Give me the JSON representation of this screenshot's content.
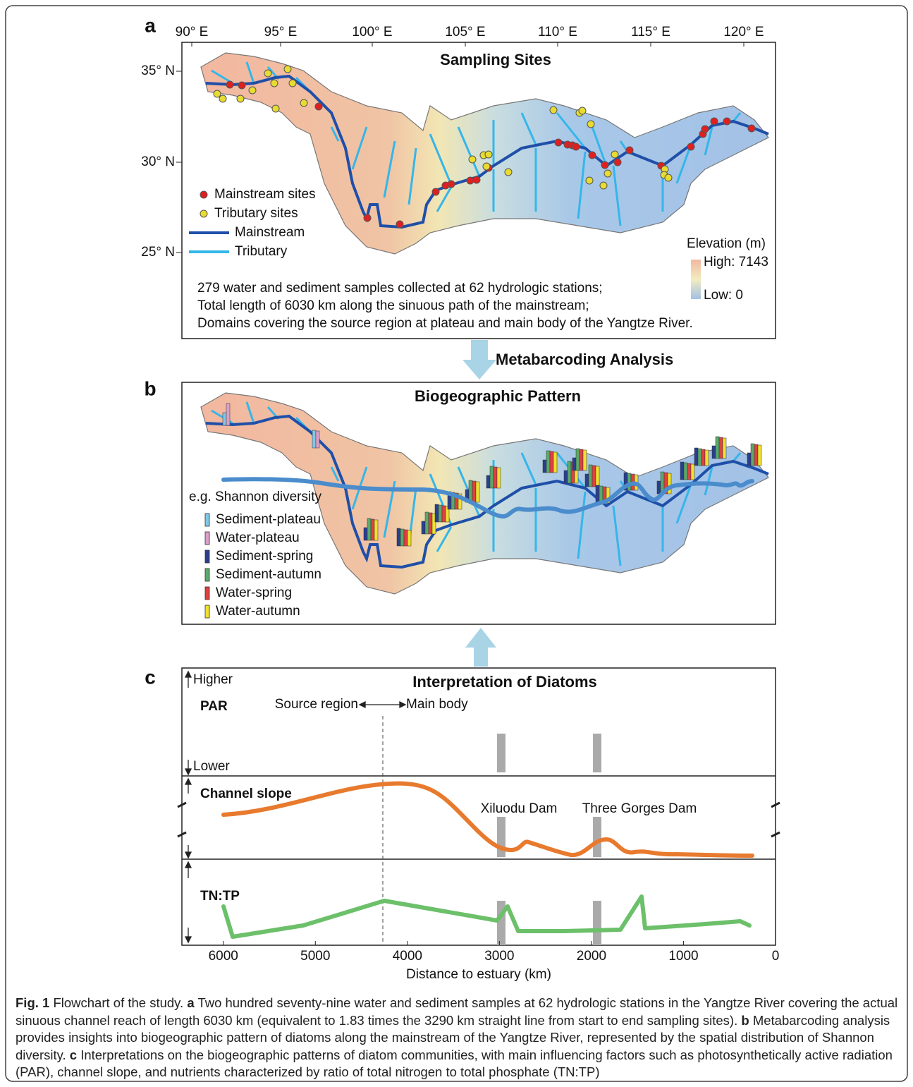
{
  "panel_a": {
    "label": "a",
    "title": "Sampling Sites",
    "lon_ticks": [
      "90° E",
      "95° E",
      "100° E",
      "105° E",
      "110° E",
      "115° E",
      "120° E"
    ],
    "lat_ticks": [
      "35° N",
      "30° N",
      "25° N"
    ],
    "legend": [
      {
        "name": "Mainstream sites",
        "color": "#e02020"
      },
      {
        "name": "Tributary sites",
        "color": "#e8dc30"
      },
      {
        "name": "Mainstream",
        "color": "#1f4fa8"
      },
      {
        "name": "Tributary",
        "color": "#35b6ea"
      }
    ],
    "elevation": {
      "title": "Elevation (m)",
      "high": "High: 7143",
      "low": "Low: 0"
    },
    "notes": [
      "279 water and sediment samples collected at 62 hydrologic stations;",
      "Total length of 6030 km along the sinuous path of the mainstream;",
      "Domains covering the source region at plateau and main body of the Yangtze River."
    ]
  },
  "arrow_label": "Metabarcoding Analysis",
  "panel_b": {
    "label": "b",
    "title": "Biogeographic Pattern",
    "legend_title": "e.g. Shannon diversity",
    "legend": [
      {
        "name": "Sediment-plateau",
        "color": "#7fc8e8"
      },
      {
        "name": "Water-plateau",
        "color": "#d9a0c8"
      },
      {
        "name": "Sediment-spring",
        "color": "#2a3f8f"
      },
      {
        "name": "Sediment-autumn",
        "color": "#5aaa6a"
      },
      {
        "name": "Water-spring",
        "color": "#e04040"
      },
      {
        "name": "Water-autumn",
        "color": "#f0e030"
      }
    ]
  },
  "panel_c": {
    "label": "c",
    "title": "Interpretation of Diatoms",
    "higher": "Higher",
    "lower": "Lower",
    "source_region": "Source region",
    "main_body": "Main body",
    "factors": [
      "PAR",
      "Channel slope",
      "TN:TP"
    ],
    "dams": [
      "Xiluodu Dam",
      "Three Gorges Dam"
    ],
    "xlim": [
      6450,
      0
    ],
    "xticks": [
      6000,
      5000,
      4000,
      3000,
      2000,
      1000,
      0
    ],
    "xlabel": "Distance to estuary (km)"
  },
  "caption": {
    "figure": "Fig. 1",
    "intro": "Flowchart of the study.",
    "a": "a",
    "a_text": "Two hundred seventy-nine water and sediment samples at 62 hydrologic stations in the Yangtze River covering the actual sinuous channel reach of length 6030 km (equivalent to 1.83 times the 3290 km straight line from start to end sampling sites).",
    "b": "b",
    "b_text": "Metabarcoding analysis provides insights into biogeographic pattern of diatoms along the mainstream of the Yangtze River, represented by the spatial distribution of Shannon diversity.",
    "c": "c",
    "c_text": "Interpretations on the biogeographic patterns of diatom communities, with main influencing factors such as photosynthetically active radiation (PAR), channel slope, and nutrients characterized by ratio of total nitrogen to total phosphate (TN:TP)"
  }
}
